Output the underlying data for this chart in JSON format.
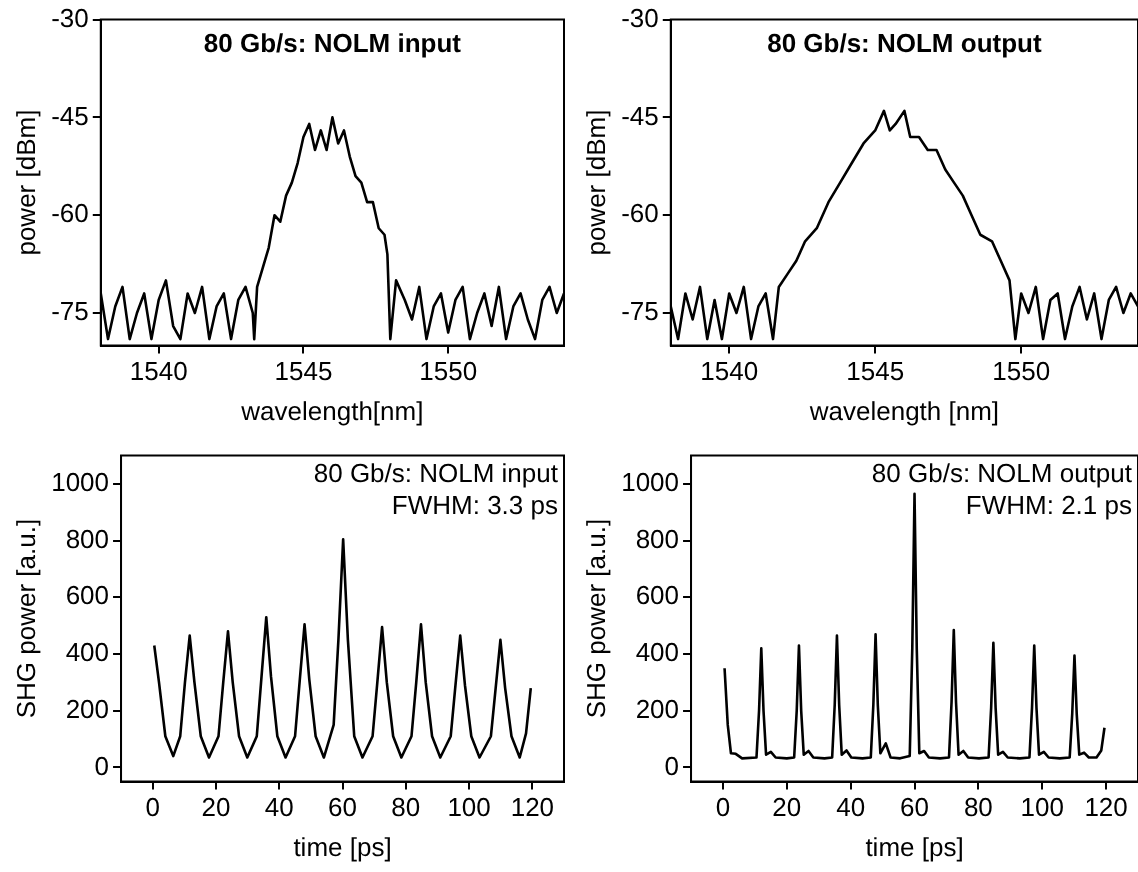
{
  "chart_data": [
    {
      "type": "line",
      "xlabel": "wavelength[nm]",
      "ylabel": "power [dBm]",
      "annotations": [
        "80 Gb/s: NOLM input"
      ],
      "xlim": [
        1538,
        1554
      ],
      "xticks": [
        1540,
        1545,
        1550
      ],
      "ylim": [
        -80,
        -30
      ],
      "yticks": [
        -30,
        -45,
        -60,
        -75
      ],
      "grid": false,
      "legend": false,
      "marker": "none",
      "line_style": "solid",
      "series": [
        {
          "color": "#000000",
          "x": [
            1538,
            1538.25,
            1538.5,
            1538.75,
            1539,
            1539.25,
            1539.5,
            1539.75,
            1540,
            1540.25,
            1540.5,
            1540.75,
            1541,
            1541.25,
            1541.5,
            1541.75,
            1542,
            1542.25,
            1542.5,
            1542.75,
            1543,
            1543.25,
            1543.3,
            1543.4,
            1543.6,
            1543.8,
            1544,
            1544.2,
            1544.4,
            1544.6,
            1544.8,
            1545,
            1545.2,
            1545.4,
            1545.6,
            1545.8,
            1546,
            1546.2,
            1546.4,
            1546.6,
            1546.8,
            1547,
            1547.2,
            1547.4,
            1547.6,
            1547.8,
            1547.9,
            1548,
            1548.2,
            1548.5,
            1548.75,
            1549,
            1549.25,
            1549.5,
            1549.75,
            1550,
            1550.25,
            1550.5,
            1550.75,
            1551,
            1551.25,
            1551.5,
            1551.75,
            1552,
            1552.25,
            1552.5,
            1552.75,
            1553,
            1553.25,
            1553.5,
            1553.75,
            1554
          ],
          "values": [
            -72,
            -79,
            -74,
            -71,
            -79,
            -75,
            -72,
            -79,
            -73,
            -70,
            -77,
            -79,
            -72,
            -75,
            -71,
            -79,
            -74,
            -72,
            -79,
            -73,
            -71,
            -75,
            -79,
            -71,
            -68,
            -65,
            -60,
            -61,
            -57,
            -55,
            -52,
            -48,
            -46,
            -50,
            -47,
            -50,
            -45,
            -49,
            -47,
            -51,
            -54,
            -55,
            -58,
            -58,
            -62,
            -63,
            -66,
            -79,
            -70,
            -73,
            -76,
            -71,
            -79,
            -74,
            -72,
            -78,
            -73,
            -71,
            -79,
            -75,
            -72,
            -77,
            -71,
            -79,
            -74,
            -72,
            -76,
            -79,
            -73,
            -71,
            -75,
            -72
          ]
        }
      ]
    },
    {
      "type": "line",
      "xlabel": "wavelength [nm]",
      "ylabel": "power [dBm]",
      "annotations": [
        "80 Gb/s: NOLM output"
      ],
      "xlim": [
        1538,
        1554
      ],
      "xticks": [
        1540,
        1545,
        1550
      ],
      "ylim": [
        -80,
        -30
      ],
      "yticks": [
        -30,
        -45,
        -60,
        -75
      ],
      "grid": false,
      "legend": false,
      "marker": "none",
      "line_style": "solid",
      "series": [
        {
          "color": "#000000",
          "x": [
            1538,
            1538.25,
            1538.5,
            1538.75,
            1539,
            1539.25,
            1539.5,
            1539.75,
            1540,
            1540.25,
            1540.5,
            1540.75,
            1541,
            1541.25,
            1541.5,
            1541.7,
            1542,
            1542.3,
            1542.6,
            1543,
            1543.4,
            1543.8,
            1544.2,
            1544.6,
            1545,
            1545.3,
            1545.5,
            1545.7,
            1546,
            1546.2,
            1546.5,
            1546.8,
            1547.1,
            1547.4,
            1547.7,
            1548,
            1548.3,
            1548.6,
            1549,
            1549.3,
            1549.6,
            1549.8,
            1550,
            1550.25,
            1550.5,
            1550.75,
            1551,
            1551.25,
            1551.5,
            1551.75,
            1552,
            1552.25,
            1552.5,
            1552.75,
            1553,
            1553.25,
            1553.5,
            1553.75,
            1554
          ],
          "values": [
            -74,
            -79,
            -72,
            -76,
            -71,
            -79,
            -73,
            -79,
            -72,
            -75,
            -71,
            -79,
            -74,
            -72,
            -79,
            -71,
            -69,
            -67,
            -64,
            -62,
            -58,
            -55,
            -52,
            -49,
            -47,
            -44,
            -47,
            -46,
            -44,
            -48,
            -48,
            -50,
            -50,
            -53,
            -55,
            -57,
            -60,
            -63,
            -64,
            -67,
            -70,
            -79,
            -72,
            -75,
            -71,
            -79,
            -73,
            -72,
            -79,
            -74,
            -71,
            -76,
            -72,
            -79,
            -73,
            -71,
            -75,
            -72,
            -74
          ]
        }
      ]
    },
    {
      "type": "line",
      "xlabel": "time [ps]",
      "ylabel": "SHG power [a.u.]",
      "annotations": [
        "80 Gb/s: NOLM input",
        "FWHM: 3.3 ps"
      ],
      "xlim": [
        -10,
        130
      ],
      "xticks": [
        0,
        20,
        40,
        60,
        80,
        100,
        120
      ],
      "ylim": [
        -50,
        1100
      ],
      "yticks": [
        0,
        200,
        400,
        600,
        800,
        1000
      ],
      "grid": false,
      "legend": false,
      "marker": "none",
      "line_style": "solid",
      "series": [
        {
          "color": "#000000",
          "x": [
            0.5,
            2,
            4,
            6.5,
            8.7,
            10.2,
            11.7,
            13.2,
            15.2,
            17.8,
            20.8,
            22.3,
            23.8,
            25.3,
            27.3,
            29.9,
            32.9,
            34.4,
            35.9,
            37.4,
            39.4,
            42,
            45,
            46.5,
            48,
            49.5,
            51.5,
            54.1,
            57.2,
            58.7,
            60.2,
            61.7,
            63.7,
            66.3,
            69.5,
            71,
            72.5,
            74,
            76,
            78.6,
            81.8,
            83.3,
            84.8,
            86.3,
            88.3,
            90.9,
            94.2,
            95.7,
            97.2,
            98.7,
            100.7,
            103.3,
            106.9,
            108.4,
            109.9,
            111.4,
            113.4,
            116,
            118,
            119.5
          ],
          "values": [
            430,
            300,
            110,
            40,
            110,
            300,
            465,
            300,
            110,
            35,
            110,
            300,
            480,
            300,
            110,
            35,
            110,
            320,
            530,
            320,
            110,
            35,
            110,
            310,
            505,
            310,
            110,
            35,
            150,
            450,
            805,
            450,
            110,
            35,
            110,
            300,
            495,
            300,
            110,
            35,
            110,
            300,
            505,
            300,
            110,
            35,
            110,
            290,
            465,
            290,
            110,
            35,
            110,
            280,
            450,
            280,
            110,
            35,
            120,
            280
          ]
        }
      ]
    },
    {
      "type": "line",
      "xlabel": "time [ps]",
      "ylabel": "SHG power [a.u.]",
      "annotations": [
        "80 Gb/s: NOLM output",
        "FWHM: 2.1 ps"
      ],
      "xlim": [
        -10,
        130
      ],
      "xticks": [
        0,
        20,
        40,
        60,
        80,
        100,
        120
      ],
      "ylim": [
        -50,
        1100
      ],
      "yticks": [
        0,
        200,
        400,
        600,
        800,
        1000
      ],
      "grid": false,
      "legend": false,
      "marker": "none",
      "line_style": "solid",
      "series": [
        {
          "color": "#000000",
          "x": [
            0.5,
            1.5,
            2.5,
            4,
            6,
            10.5,
            11.3,
            12,
            12.7,
            13.5,
            15,
            16.5,
            20,
            22.3,
            23.1,
            23.8,
            24.5,
            25.3,
            26.8,
            28.3,
            31.8,
            34.2,
            35,
            35.7,
            36.4,
            37.2,
            38.7,
            40.2,
            43.7,
            46.3,
            47.1,
            47.8,
            48.5,
            49.3,
            51,
            52.5,
            55.5,
            58.5,
            59.3,
            60,
            60.7,
            61.5,
            63,
            64.5,
            68,
            70.8,
            71.6,
            72.3,
            73,
            73.8,
            75.3,
            76.8,
            80.2,
            83.2,
            84,
            84.7,
            85.4,
            86.2,
            87.7,
            89.2,
            93,
            96,
            96.8,
            97.5,
            98.2,
            99,
            100.5,
            102,
            105.5,
            108.6,
            109.4,
            110.1,
            110.8,
            111.6,
            113.1,
            114.6,
            117,
            118.5,
            119.5
          ],
          "values": [
            350,
            150,
            50,
            48,
            32,
            35,
            200,
            420,
            200,
            45,
            55,
            35,
            32,
            35,
            200,
            430,
            200,
            45,
            58,
            35,
            32,
            35,
            220,
            465,
            220,
            45,
            60,
            35,
            32,
            35,
            220,
            470,
            220,
            50,
            85,
            35,
            32,
            40,
            420,
            965,
            420,
            50,
            58,
            35,
            32,
            35,
            230,
            485,
            230,
            45,
            58,
            35,
            32,
            35,
            210,
            440,
            210,
            45,
            55,
            35,
            32,
            35,
            210,
            430,
            210,
            45,
            55,
            35,
            32,
            35,
            190,
            395,
            190,
            45,
            52,
            35,
            35,
            60,
            140
          ]
        }
      ]
    }
  ]
}
